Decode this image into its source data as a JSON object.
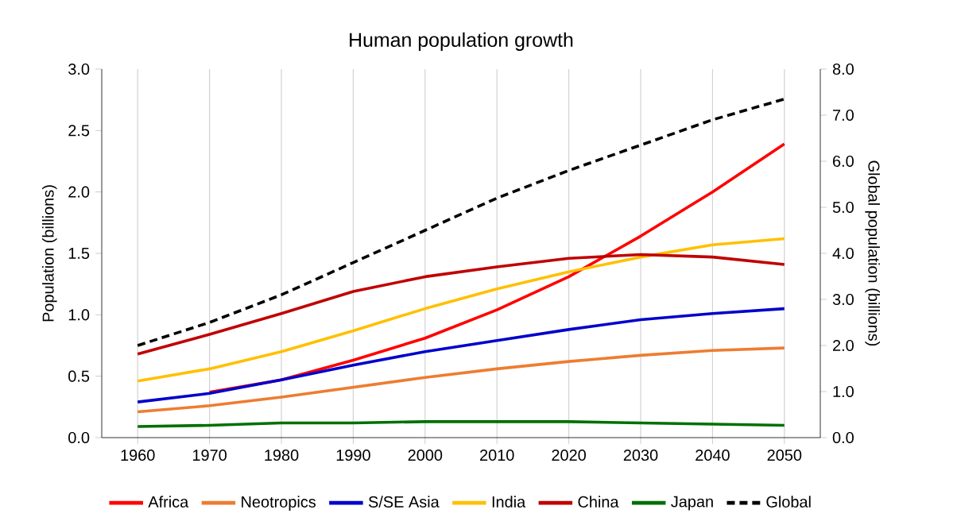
{
  "chart_data": {
    "type": "line",
    "title": "Human population growth",
    "ylabel": "Population (billions)",
    "y2label": "Global population (billions)",
    "x": [
      1960,
      1970,
      1980,
      1990,
      2000,
      2010,
      2020,
      2030,
      2040,
      2050
    ],
    "xlim": [
      1955,
      2055
    ],
    "xticks": [
      1960,
      1970,
      1980,
      1990,
      2000,
      2010,
      2020,
      2030,
      2040,
      2050
    ],
    "ylim": [
      0,
      3
    ],
    "yticks": [
      {
        "value": 0,
        "label": "0.0"
      },
      {
        "value": 0.5,
        "label": "0.5"
      },
      {
        "value": 1,
        "label": "1.0"
      },
      {
        "value": 1.5,
        "label": "1.5"
      },
      {
        "value": 2,
        "label": "2.0"
      },
      {
        "value": 2.5,
        "label": "2.5"
      },
      {
        "value": 3,
        "label": "3.0"
      }
    ],
    "y2lim": [
      0,
      8
    ],
    "y2ticks": [
      {
        "value": 0,
        "label": "0.0"
      },
      {
        "value": 1,
        "label": "1.0"
      },
      {
        "value": 2,
        "label": "2.0"
      },
      {
        "value": 3,
        "label": "3.0"
      },
      {
        "value": 4,
        "label": "4.0"
      },
      {
        "value": 5,
        "label": "5.0"
      },
      {
        "value": 6,
        "label": "6.0"
      },
      {
        "value": 7,
        "label": "7.0"
      },
      {
        "value": 8,
        "label": "8.0"
      }
    ],
    "grid": "x",
    "legend": "bottom",
    "marker": "none",
    "series": [
      {
        "name": "Africa",
        "color": "#ff0000",
        "values": [
          null,
          0.37,
          0.47,
          0.63,
          0.81,
          1.04,
          1.31,
          1.64,
          2.0,
          2.39
        ]
      },
      {
        "name": "Neotropics",
        "color": "#ed7d31",
        "values": [
          0.21,
          0.26,
          0.33,
          0.41,
          0.49,
          0.56,
          0.62,
          0.67,
          0.71,
          0.73
        ]
      },
      {
        "name": "S/SE Asia",
        "color": "#0000cc",
        "values": [
          0.29,
          0.36,
          0.47,
          0.59,
          0.7,
          0.79,
          0.88,
          0.96,
          1.01,
          1.05
        ]
      },
      {
        "name": "India",
        "color": "#ffc000",
        "values": [
          0.46,
          0.56,
          0.7,
          0.87,
          1.05,
          1.21,
          1.35,
          1.47,
          1.57,
          1.62
        ]
      },
      {
        "name": "China",
        "color": "#c00000",
        "values": [
          0.68,
          0.84,
          1.01,
          1.19,
          1.31,
          1.39,
          1.46,
          1.49,
          1.47,
          1.41
        ]
      },
      {
        "name": "Japan",
        "color": "#007000",
        "values": [
          0.09,
          0.1,
          0.12,
          0.12,
          0.13,
          0.13,
          0.13,
          0.12,
          0.11,
          0.1
        ]
      },
      {
        "name": "Global",
        "color": "#000000",
        "axis": "y2",
        "line_style": "dashed",
        "values": [
          2.0,
          2.5,
          3.1,
          3.8,
          4.5,
          5.2,
          5.8,
          6.35,
          6.9,
          7.35
        ]
      }
    ]
  }
}
